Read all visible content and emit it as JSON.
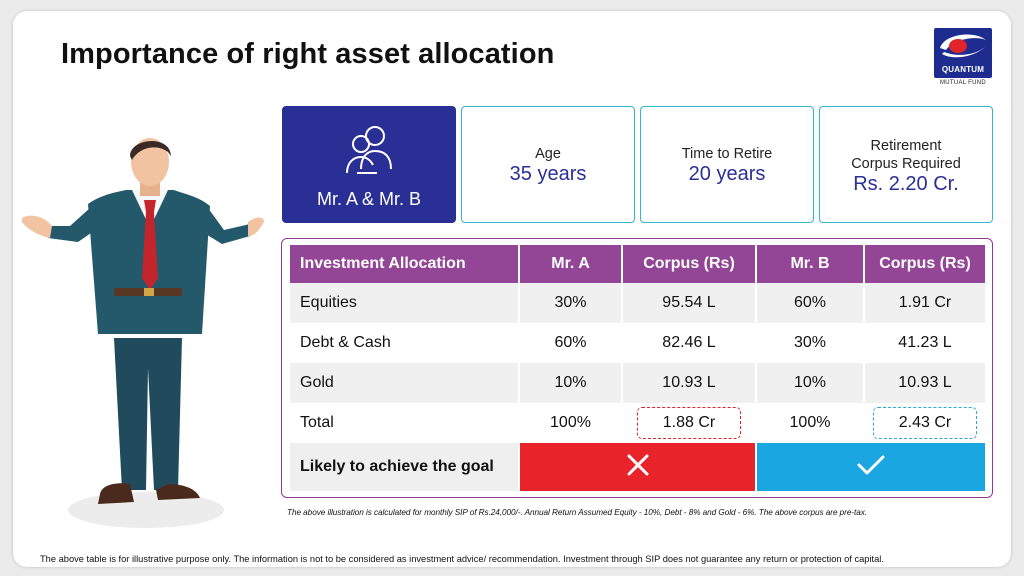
{
  "slide": {
    "title": "Importance of right asset allocation",
    "logo": {
      "word": "QUANTUM",
      "sub": "MUTUAL FUND",
      "icon": "quantum-logo"
    }
  },
  "cards": {
    "investors": {
      "label": "Mr. A & Mr. B",
      "icon": "people-icon"
    },
    "age": {
      "label": "Age",
      "value": "35 years"
    },
    "time_to_retire": {
      "label": "Time to Retire",
      "value": "20 years"
    },
    "corpus": {
      "label_line1": "Retirement",
      "label_line2": "Corpus Required",
      "value": "Rs. 2.20 Cr."
    }
  },
  "table": {
    "headers": [
      "Investment Allocation",
      "Mr. A",
      "Corpus (Rs)",
      "Mr. B",
      "Corpus (Rs)"
    ],
    "rows": [
      [
        "Equities",
        "30%",
        "95.54 L",
        "60%",
        "1.91 Cr"
      ],
      [
        "Debt & Cash",
        "60%",
        "82.46 L",
        "30%",
        "41.23 L"
      ],
      [
        "Gold",
        "10%",
        "10.93 L",
        "10%",
        "10.93 L"
      ],
      [
        "Total",
        "100%",
        "1.88 Cr",
        "100%",
        "2.43 Cr"
      ]
    ],
    "goal_label": "Likely to achieve the goal",
    "goal_mr_a": {
      "icon": "cross-icon",
      "achieves": false
    },
    "goal_mr_b": {
      "icon": "check-icon",
      "achieves": true
    }
  },
  "colors": {
    "header_purple": "#934695",
    "navy": "#2a2f96",
    "red": "#e8232a",
    "blue": "#1aa6e0",
    "teal_border": "#33b7cf"
  },
  "footnote": "The above illustration is calculated for monthly SIP of Rs.24,000/-. Annual Return Assumed  Equity - 10%, Debt - 8% and Gold - 6%. The above corpus are pre-tax.",
  "disclaimer": "The above table is for illustrative purpose only. The information is not to be considered as investment advice/ recommendation. Investment through SIP does not guarantee any return or protection of capital."
}
